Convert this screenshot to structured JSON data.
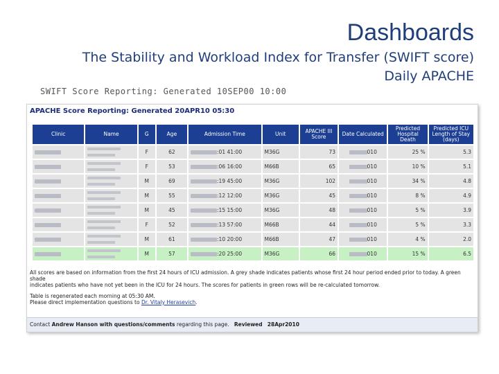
{
  "slide": {
    "title": "Dashboards",
    "subtitle": "The Stability and Workload Index for Transfer (SWIFT score)",
    "subtitle2": "Daily APACHE",
    "swift_header": "SWIFT Score Reporting: Generated 10SEP00 10:00"
  },
  "report": {
    "title": "APACHE Score Reporting: Generated 20APR10 05:30",
    "columns": [
      "Clinic",
      "Name",
      "G",
      "Age",
      "Admission Time",
      "Unit",
      "APACHE III Score",
      "Date Calculated",
      "Predicted Hospital Death",
      "Predicted ICU Length of Stay (days)"
    ],
    "rows": [
      {
        "g": "F",
        "age": "62",
        "admit_time": ":01 41:00",
        "unit": "M36G",
        "score": "73",
        "date_suffix": "010",
        "death": "25 %",
        "los": "5.3",
        "green": false
      },
      {
        "g": "F",
        "age": "53",
        "admit_time": ":06 16:00",
        "unit": "M66B",
        "score": "65",
        "date_suffix": "010",
        "death": "10 %",
        "los": "5.1",
        "green": false
      },
      {
        "g": "M",
        "age": "69",
        "admit_time": ":19 45:00",
        "unit": "M36G",
        "score": "102",
        "date_suffix": "010",
        "death": "34 %",
        "los": "4.8",
        "green": false
      },
      {
        "g": "M",
        "age": "55",
        "admit_time": ":12 12:00",
        "unit": "M36G",
        "score": "45",
        "date_suffix": "010",
        "death": "8 %",
        "los": "4.9",
        "green": false
      },
      {
        "g": "M",
        "age": "45",
        "admit_time": ":15 15:00",
        "unit": "M36G",
        "score": "48",
        "date_suffix": "010",
        "death": "5 %",
        "los": "3.9",
        "green": false
      },
      {
        "g": "F",
        "age": "52",
        "admit_time": ":13 57:00",
        "unit": "M66B",
        "score": "44",
        "date_suffix": "010",
        "death": "5 %",
        "los": "3.3",
        "green": false
      },
      {
        "g": "M",
        "age": "61",
        "admit_time": ":10 20:00",
        "unit": "M66B",
        "score": "47",
        "date_suffix": "010",
        "death": "4 %",
        "los": "2.0",
        "green": false
      },
      {
        "g": "M",
        "age": "57",
        "admit_time": ":20 25:00",
        "unit": "M36G",
        "score": "66",
        "date_suffix": "010",
        "death": "15 %",
        "los": "6.5",
        "green": true
      }
    ],
    "note1": "All scores are based on information from the first 24 hours of ICU admission. A grey shade indicates patients whose first 24 hour period ended prior to today. A green shade",
    "note2": "indicates patients who have not yet been in the ICU for 24 hours. The scores for patients in green rows will be re-calculated tomorrow.",
    "note3": "Table is regenerated each morning at 05:30 AM.",
    "note4_prefix": "Please direct implementation questions to ",
    "note4_link": "Dr. Vitaly Herasevich",
    "note4_suffix": ".",
    "footer": {
      "contact_prefix": "Contact ",
      "contact_name": "Andrew Hanson with questions/comments",
      "contact_suffix": " regarding this page.",
      "reviewed_label": "Reviewed",
      "reviewed_date": "28Apr2010"
    }
  }
}
